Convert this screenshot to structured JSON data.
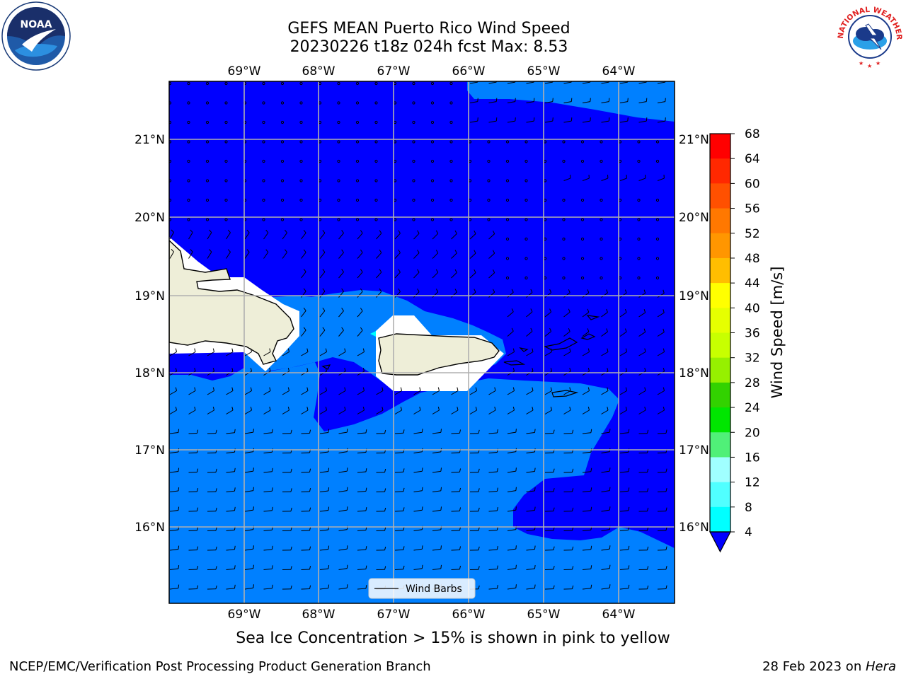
{
  "title_line1": "GEFS MEAN Puerto Rico Wind Speed",
  "title_line2": "20230226 t18z 024h fcst   Max: 8.53",
  "lon_labels": [
    "69°W",
    "68°W",
    "67°W",
    "66°W",
    "65°W",
    "64°W"
  ],
  "lat_labels": [
    "21°N",
    "20°N",
    "19°N",
    "18°N",
    "17°N",
    "16°N"
  ],
  "legend_label": "Wind Barbs",
  "colorbar": {
    "label": "Wind Speed [m/s]",
    "ticks": [
      "68",
      "64",
      "60",
      "56",
      "52",
      "48",
      "44",
      "40",
      "36",
      "32",
      "28",
      "24",
      "20",
      "16",
      "12",
      "8",
      "4"
    ],
    "colors": [
      "#ff0000",
      "#ff2800",
      "#ff5000",
      "#ff7800",
      "#ff9600",
      "#ffbe00",
      "#ffff00",
      "#e6ff00",
      "#c8ff00",
      "#96f000",
      "#32d200",
      "#00e600",
      "#50f078",
      "#a0ffff",
      "#50ffff",
      "#00ffff",
      "#00e6ff",
      "#0080ff"
    ],
    "extend_color": "#0000ff"
  },
  "note": "Sea Ice Concentration > 15% is shown in pink to yellow",
  "footer_left": "NCEP/EMC/Verification Post Processing Product Generation Branch",
  "footer_right_prefix": "28 Feb 2023 on ",
  "footer_right_host": "Hera",
  "logo_left": "NOAA",
  "logo_right": "NATIONAL WEATHER SERVICE",
  "colors": {
    "land": "#eeeed8",
    "sea_low": "#0000ff",
    "sea_mid": "#0080ff",
    "grid": "#b0b0b0"
  }
}
